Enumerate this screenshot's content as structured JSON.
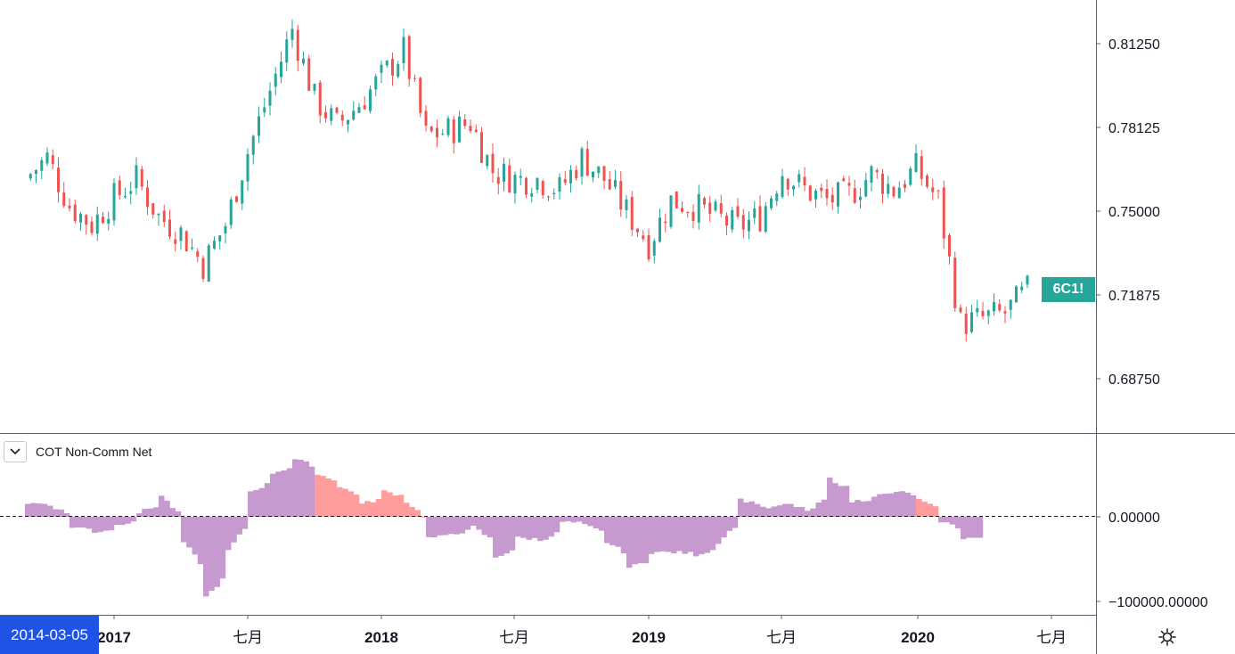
{
  "price_scale": {
    "ticks": [
      {
        "label": "0.81250",
        "value": 0.8125
      },
      {
        "label": "0.78125",
        "value": 0.78125
      },
      {
        "label": "0.75000",
        "value": 0.75
      },
      {
        "label": "0.71875",
        "value": 0.71875
      },
      {
        "label": "0.68750",
        "value": 0.6875
      }
    ]
  },
  "symbol_badge": {
    "label": "6C1!",
    "value": 0.7205,
    "color": "#26a69a"
  },
  "indicator": {
    "title": "COT Non-Comm Net",
    "zero_label": "0.00000",
    "low_label": "−100000.00000"
  },
  "time_axis": {
    "ticks": [
      {
        "label": "2017",
        "bold": true
      },
      {
        "label": "七月",
        "bold": false
      },
      {
        "label": "2018",
        "bold": true
      },
      {
        "label": "七月",
        "bold": false
      },
      {
        "label": "2019",
        "bold": true
      },
      {
        "label": "七月",
        "bold": false
      },
      {
        "label": "2020",
        "bold": true
      },
      {
        "label": "七月",
        "bold": false
      }
    ]
  },
  "crosshair_date": "2014-03-05",
  "settings_icon": "gear-icon",
  "colors": {
    "up": "#26a69a",
    "down": "#ef5350",
    "cot_positive_long": "#c79acf",
    "cot_positive_hl": "#ff9c9c",
    "cot_negative": "#c79acf"
  },
  "chart_data": [
    {
      "type": "candlestick",
      "title": "6C1!",
      "x_range": [
        "2016-09",
        "2020-07"
      ],
      "ylim": [
        0.66,
        0.825
      ],
      "series": [
        {
          "name": "6C1!",
          "close_path": [
            [
              "2016-09",
              0.762
            ],
            [
              "2016-10",
              0.77
            ],
            [
              "2016-11",
              0.752
            ],
            [
              "2016-12",
              0.745
            ],
            [
              "2017-01",
              0.755
            ],
            [
              "2017-02",
              0.762
            ],
            [
              "2017-03",
              0.748
            ],
            [
              "2017-04",
              0.742
            ],
            [
              "2017-05",
              0.73
            ],
            [
              "2017-06",
              0.745
            ],
            [
              "2017-07",
              0.772
            ],
            [
              "2017-08",
              0.795
            ],
            [
              "2017-09",
              0.818
            ],
            [
              "2017-10",
              0.792
            ],
            [
              "2017-11",
              0.782
            ],
            [
              "2017-12",
              0.79
            ],
            [
              "2018-01",
              0.8
            ],
            [
              "2018-02",
              0.81
            ],
            [
              "2018-03",
              0.778
            ],
            [
              "2018-04",
              0.78
            ],
            [
              "2018-05",
              0.783
            ],
            [
              "2018-06",
              0.765
            ],
            [
              "2018-07",
              0.762
            ],
            [
              "2018-08",
              0.762
            ],
            [
              "2018-09",
              0.758
            ],
            [
              "2018-10",
              0.77
            ],
            [
              "2018-11",
              0.762
            ],
            [
              "2018-12",
              0.75
            ],
            [
              "2019-01",
              0.738
            ],
            [
              "2019-02",
              0.754
            ],
            [
              "2019-03",
              0.752
            ],
            [
              "2019-04",
              0.748
            ],
            [
              "2019-05",
              0.744
            ],
            [
              "2019-06",
              0.748
            ],
            [
              "2019-07",
              0.765
            ],
            [
              "2019-08",
              0.758
            ],
            [
              "2019-09",
              0.754
            ],
            [
              "2019-10",
              0.756
            ],
            [
              "2019-11",
              0.764
            ],
            [
              "2019-12",
              0.758
            ],
            [
              "2020-01",
              0.766
            ],
            [
              "2020-02",
              0.754
            ],
            [
              "2020-03",
              0.708
            ],
            [
              "2020-04",
              0.71
            ],
            [
              "2020-05",
              0.712
            ],
            [
              "2020-06",
              0.7205
            ]
          ]
        }
      ]
    },
    {
      "type": "bar",
      "title": "COT Non-Comm Net",
      "ylim": [
        -110000,
        65000
      ],
      "series": [
        {
          "name": "COT Non-Comm Net",
          "points": [
            [
              "2016-09",
              16000
            ],
            [
              "2016-10",
              14000
            ],
            [
              "2016-11",
              -12000
            ],
            [
              "2016-12",
              -18000
            ],
            [
              "2017-01",
              -10000
            ],
            [
              "2017-02",
              5000
            ],
            [
              "2017-03",
              25000
            ],
            [
              "2017-04",
              -30000
            ],
            [
              "2017-05",
              -95000
            ],
            [
              "2017-06",
              -40000
            ],
            [
              "2017-07",
              30000
            ],
            [
              "2017-08",
              52000
            ],
            [
              "2017-09",
              68000
            ],
            [
              "2017-10",
              50000
            ],
            [
              "2017-11",
              35000
            ],
            [
              "2017-12",
              15000
            ],
            [
              "2018-01",
              30000
            ],
            [
              "2018-02",
              18000
            ],
            [
              "2018-03",
              -25000
            ],
            [
              "2018-04",
              -20000
            ],
            [
              "2018-05",
              -12000
            ],
            [
              "2018-06",
              -48000
            ],
            [
              "2018-07",
              -25000
            ],
            [
              "2018-08",
              -28000
            ],
            [
              "2018-09",
              -6000
            ],
            [
              "2018-10",
              -10000
            ],
            [
              "2018-11",
              -30000
            ],
            [
              "2018-12",
              -60000
            ],
            [
              "2019-01",
              -42000
            ],
            [
              "2019-02",
              -42000
            ],
            [
              "2019-03",
              -45000
            ],
            [
              "2019-04",
              -30000
            ],
            [
              "2019-05",
              20000
            ],
            [
              "2019-06",
              10000
            ],
            [
              "2019-07",
              15000
            ],
            [
              "2019-08",
              5000
            ],
            [
              "2019-09",
              45000
            ],
            [
              "2019-10",
              18000
            ],
            [
              "2019-11",
              25000
            ],
            [
              "2019-12",
              30000
            ],
            [
              "2020-01",
              20000
            ],
            [
              "2020-02",
              -5000
            ],
            [
              "2020-03",
              -25000
            ]
          ]
        }
      ]
    }
  ]
}
